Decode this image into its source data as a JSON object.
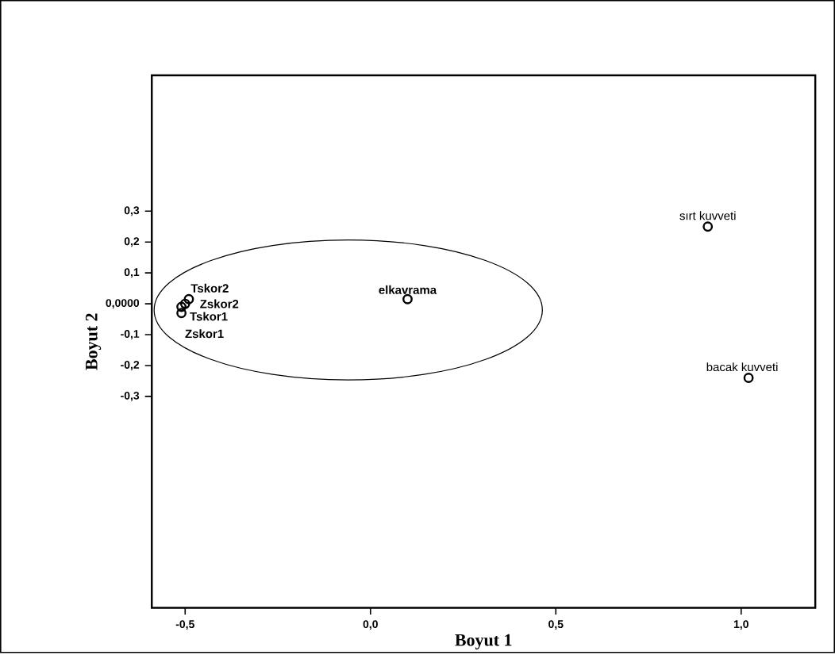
{
  "chart_data": {
    "type": "scatter",
    "xlabel": "Boyut 1",
    "ylabel": "Boyut 2",
    "x": [
      0.91,
      1.02,
      0.1,
      -0.49,
      -0.5,
      -0.51,
      -0.51
    ],
    "values": [
      0.25,
      -0.24,
      0.015,
      0.015,
      0.0,
      -0.01,
      -0.03
    ],
    "color": "#000000",
    "marker": "circle",
    "xlim": [
      -0.59,
      1.2
    ],
    "ylim": [
      -0.985,
      0.74
    ],
    "xticks": [
      {
        "value": -0.5,
        "label": "-0,5"
      },
      {
        "value": 0,
        "label": "0,0"
      },
      {
        "value": 0.5,
        "label": "0,5"
      },
      {
        "value": 1.0,
        "label": "1,0"
      }
    ],
    "yticks": [
      {
        "value": 0.3,
        "label": "0,3"
      },
      {
        "value": 0.2,
        "label": "0,2"
      },
      {
        "value": 0.1,
        "label": "0,1"
      },
      {
        "value": 0,
        "label": "0,0000"
      },
      {
        "value": -0.1,
        "label": "-0,1"
      },
      {
        "value": -0.2,
        "label": "-0,2"
      },
      {
        "value": -0.3,
        "label": "-0,3"
      }
    ],
    "annotations": [
      {
        "text": "sırt kuvveti",
        "x": 0.91,
        "y": 0.25
      },
      {
        "text": "bacak kuvveti",
        "x": 1.02,
        "y": -0.24
      },
      {
        "text": "elkavrama",
        "x": 0.1,
        "y": 0.015
      },
      {
        "text": "Tskor2",
        "x": -0.49,
        "y": 0.015
      },
      {
        "text": "Zskor2",
        "x": -0.5,
        "y": 0.0
      },
      {
        "text": "Tskor1",
        "x": -0.51,
        "y": -0.01
      },
      {
        "text": "Zskor1",
        "x": -0.51,
        "y": -0.03
      }
    ]
  }
}
